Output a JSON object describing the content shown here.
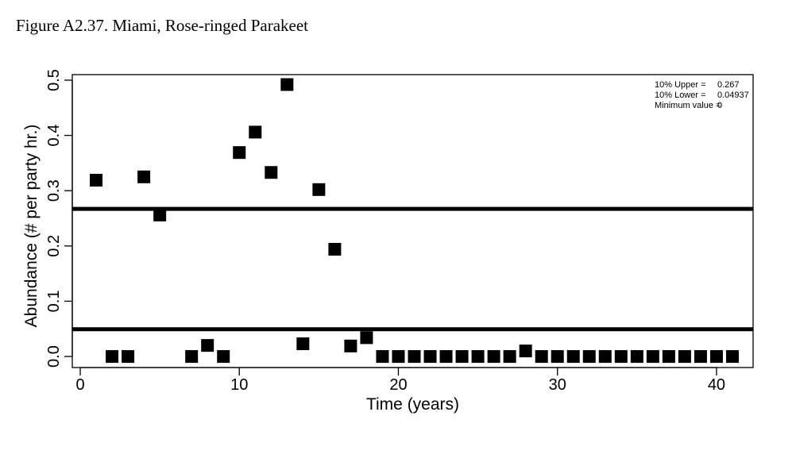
{
  "figure_title": "Figure A2.37. Miami, Rose-ringed Parakeet",
  "chart_data": {
    "type": "scatter",
    "title": "",
    "xlabel": "Time (years)",
    "ylabel": "Abundance (# per party hr.)",
    "xlim": [
      -0.5,
      42.3
    ],
    "ylim": [
      -0.02,
      0.51
    ],
    "xticks": [
      0,
      10,
      20,
      30,
      40
    ],
    "yticks": [
      0.0,
      0.1,
      0.2,
      0.3,
      0.4,
      0.5
    ],
    "ytick_labels": [
      "0.0",
      "0.1",
      "0.2",
      "0.3",
      "0.4",
      "0.5"
    ],
    "grid": false,
    "marker": "square",
    "color": "#000000",
    "x": [
      1,
      2,
      3,
      4,
      5,
      7,
      8,
      9,
      10,
      11,
      12,
      13,
      14,
      15,
      16,
      17,
      18,
      19,
      20,
      21,
      22,
      23,
      24,
      25,
      26,
      27,
      28,
      29,
      30,
      31,
      32,
      33,
      34,
      35,
      36,
      37,
      38,
      39,
      40,
      41
    ],
    "y": [
      0.319,
      0,
      0,
      0.325,
      0.256,
      0,
      0.02,
      0,
      0.369,
      0.406,
      0.333,
      0.492,
      0.023,
      0.302,
      0.194,
      0.019,
      0.034,
      0,
      0,
      0,
      0,
      0,
      0,
      0,
      0,
      0,
      0.01,
      0,
      0,
      0,
      0,
      0,
      0,
      0,
      0,
      0,
      0,
      0,
      0,
      0
    ],
    "reference_lines": [
      {
        "label": "10% Upper",
        "value": 0.267
      },
      {
        "label": "10% Lower",
        "value": 0.04937
      }
    ],
    "annotations": [
      {
        "label": "10% Upper = ",
        "value": "0.267"
      },
      {
        "label": "10% Lower = ",
        "value": "0.04937"
      },
      {
        "label": "Minimum value = ",
        "value": "0"
      }
    ],
    "legend_position": "top-right"
  }
}
